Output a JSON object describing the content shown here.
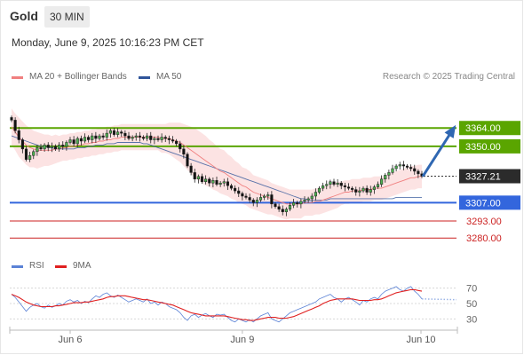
{
  "header": {
    "title": "Gold",
    "timeframe": "30 MIN"
  },
  "timestamp": "Monday, June 9, 2025 10:16:23 PM CET",
  "legend": {
    "ma20": {
      "label": "MA 20 + Bollinger Bands",
      "color": "#f08080"
    },
    "ma50": {
      "label": "MA 50",
      "color": "#30559a"
    },
    "rsi": {
      "label": "RSI",
      "color": "#5b82d6"
    },
    "ma9": {
      "label": "9MA",
      "color": "#e02020"
    }
  },
  "credit": "Research © 2025 Trading Central",
  "chart_data": [
    {
      "type": "candlestick",
      "ylim": [
        3272,
        3375
      ],
      "last_price": {
        "value": 3327.21,
        "label": "3327.21"
      },
      "levels": [
        {
          "label": "3364.00",
          "value": 3364.0,
          "kind": "resistance",
          "color": "#5aa500"
        },
        {
          "label": "3350.00",
          "value": 3350.0,
          "kind": "resistance",
          "color": "#5aa500"
        },
        {
          "label": "3307.00",
          "value": 3307.0,
          "kind": "pivot",
          "color": "#3366dd"
        },
        {
          "label": "3293.00",
          "value": 3293.0,
          "kind": "support",
          "color": "#cc2222"
        },
        {
          "label": "3280.00",
          "value": 3280.0,
          "kind": "support",
          "color": "#cc2222"
        }
      ],
      "arrow": {
        "from": 3327,
        "to": 3364
      },
      "x_ticks": [
        "Jun 6",
        "Jun 9",
        "Jun 10"
      ],
      "close": [
        3370,
        3362,
        3355,
        3348,
        3340,
        3343,
        3346,
        3349,
        3348,
        3351,
        3349,
        3350,
        3348,
        3351,
        3350,
        3353,
        3355,
        3352,
        3356,
        3354,
        3357,
        3355,
        3358,
        3356,
        3358,
        3357,
        3360,
        3362,
        3359,
        3361,
        3360,
        3358,
        3356,
        3357,
        3358,
        3357,
        3356,
        3358,
        3355,
        3356,
        3355,
        3357,
        3356,
        3355,
        3354,
        3352,
        3348,
        3344,
        3335,
        3330,
        3325,
        3327,
        3323,
        3325,
        3322,
        3324,
        3321,
        3322,
        3323,
        3320,
        3318,
        3316,
        3314,
        3312,
        3311,
        3309,
        3307,
        3309,
        3311,
        3312,
        3313,
        3306,
        3304,
        3302,
        3300,
        3302,
        3305,
        3307,
        3306,
        3308,
        3309,
        3310,
        3312,
        3315,
        3318,
        3320,
        3321,
        3323,
        3321,
        3322,
        3320,
        3319,
        3318,
        3317,
        3315,
        3316,
        3318,
        3315,
        3317,
        3319,
        3321,
        3325,
        3328,
        3330,
        3333,
        3335,
        3336,
        3335,
        3334,
        3333,
        3331,
        3329,
        3327.21
      ],
      "ma20": [
        3365,
        3361,
        3357,
        3354,
        3351,
        3349,
        3348,
        3347,
        3347,
        3347,
        3347,
        3347,
        3348,
        3348,
        3349,
        3349,
        3350,
        3350,
        3351,
        3351,
        3352,
        3352,
        3353,
        3353,
        3354,
        3354,
        3355,
        3355,
        3356,
        3356,
        3357,
        3357,
        3357,
        3357,
        3357,
        3357,
        3357,
        3357,
        3357,
        3357,
        3357,
        3356,
        3356,
        3356,
        3355,
        3354,
        3353,
        3351,
        3349,
        3347,
        3345,
        3343,
        3341,
        3339,
        3337,
        3335,
        3333,
        3331,
        3330,
        3328,
        3326,
        3324,
        3322,
        3320,
        3319,
        3317,
        3315,
        3314,
        3313,
        3312,
        3311,
        3310,
        3309,
        3308,
        3307,
        3306,
        3306,
        3306,
        3306,
        3306,
        3307,
        3307,
        3307,
        3308,
        3308,
        3309,
        3310,
        3311,
        3312,
        3313,
        3314,
        3315,
        3315,
        3316,
        3316,
        3316,
        3317,
        3317,
        3317,
        3318,
        3318,
        3318,
        3319,
        3320,
        3321,
        3322,
        3323,
        3324,
        3325,
        3326,
        3326,
        3327,
        3327
      ],
      "ma50": [
        3358,
        3357,
        3356,
        3355,
        3354,
        3353,
        3352,
        3351,
        3350,
        3350,
        3349,
        3349,
        3348,
        3348,
        3348,
        3348,
        3348,
        3348,
        3349,
        3349,
        3349,
        3350,
        3350,
        3351,
        3351,
        3351,
        3352,
        3352,
        3352,
        3353,
        3353,
        3353,
        3353,
        3353,
        3353,
        3353,
        3352,
        3352,
        3351,
        3350,
        3349,
        3348,
        3347,
        3346,
        3345,
        3344,
        3343,
        3342,
        3341,
        3340,
        3339,
        3338,
        3337,
        3336,
        3335,
        3334,
        3333,
        3332,
        3331,
        3330,
        3329,
        3328,
        3327,
        3326,
        3325,
        3324,
        3323,
        3322,
        3321,
        3320,
        3319,
        3318,
        3317,
        3316,
        3315,
        3314,
        3313,
        3312,
        3311,
        3310,
        3310,
        3309,
        3309,
        3309,
        3309,
        3309,
        3309,
        3310,
        3310,
        3310,
        3310,
        3310,
        3310,
        3310,
        3310,
        3310,
        3310,
        3310,
        3310,
        3310,
        3310,
        3310,
        3310,
        3310,
        3310,
        3311,
        3311,
        3311,
        3311,
        3311,
        3311,
        3311,
        3311
      ],
      "bb_width": [
        14,
        14,
        15,
        15,
        15,
        15,
        14,
        14,
        13,
        12,
        12,
        11,
        11,
        10,
        10,
        10,
        10,
        10,
        10,
        10,
        10,
        10,
        10,
        10,
        10,
        10,
        10,
        10,
        10,
        10,
        10,
        10,
        10,
        10,
        10,
        10,
        10,
        10,
        10,
        10,
        10,
        11,
        11,
        12,
        13,
        14,
        15,
        16,
        17,
        18,
        19,
        19,
        19,
        19,
        18,
        18,
        17,
        17,
        17,
        16,
        16,
        15,
        15,
        14,
        14,
        14,
        13,
        13,
        13,
        13,
        13,
        12,
        12,
        12,
        12,
        12,
        11,
        11,
        11,
        11,
        10,
        10,
        10,
        10,
        10,
        10,
        10,
        10,
        10,
        10,
        9,
        9,
        9,
        9,
        9,
        9,
        9,
        9,
        9,
        9,
        9,
        9,
        9,
        9,
        9,
        9,
        9,
        9,
        9,
        9,
        9,
        9,
        9
      ]
    },
    {
      "type": "line",
      "ylim": [
        20,
        80
      ],
      "y_ticks": [
        "70",
        "50",
        "30"
      ],
      "y_tick_values": [
        70,
        50,
        30
      ],
      "rsi": [
        62,
        58,
        52,
        46,
        40,
        45,
        48,
        50,
        46,
        44,
        48,
        45,
        47,
        50,
        48,
        53,
        55,
        52,
        54,
        50,
        53,
        51,
        56,
        60,
        58,
        62,
        64,
        60,
        58,
        61,
        58,
        55,
        52,
        54,
        56,
        54,
        52,
        56,
        50,
        52,
        48,
        52,
        50,
        46,
        44,
        42,
        38,
        32,
        28,
        34,
        36,
        32,
        35,
        37,
        34,
        32,
        36,
        35,
        36,
        32,
        28,
        26,
        30,
        28,
        26,
        29,
        26,
        30,
        34,
        36,
        38,
        30,
        28,
        26,
        30,
        34,
        38,
        40,
        42,
        44,
        46,
        48,
        50,
        52,
        56,
        58,
        60,
        62,
        58,
        56,
        52,
        56,
        58,
        55,
        52,
        48,
        54,
        52,
        56,
        58,
        56,
        62,
        66,
        68,
        70,
        72,
        68,
        66,
        70,
        72,
        66,
        62,
        56
      ],
      "ma9": [
        62,
        60,
        58,
        55,
        52,
        50,
        48,
        47,
        46,
        46,
        46,
        46,
        47,
        47,
        48,
        49,
        50,
        51,
        51,
        51,
        52,
        52,
        53,
        54,
        55,
        56,
        58,
        59,
        59,
        60,
        60,
        60,
        59,
        58,
        57,
        56,
        55,
        55,
        54,
        53,
        52,
        51,
        50,
        49,
        48,
        46,
        44,
        42,
        40,
        38,
        37,
        36,
        35,
        34,
        34,
        34,
        34,
        34,
        34,
        33,
        32,
        31,
        30,
        29,
        29,
        28,
        28,
        29,
        30,
        31,
        32,
        32,
        32,
        31,
        31,
        31,
        32,
        33,
        35,
        37,
        39,
        41,
        43,
        45,
        47,
        50,
        52,
        54,
        55,
        56,
        56,
        56,
        56,
        56,
        55,
        54,
        54,
        54,
        54,
        55,
        55,
        56,
        58,
        60,
        62,
        64,
        65,
        66,
        67,
        68,
        68,
        67,
        66
      ],
      "projection": [
        56,
        55
      ]
    }
  ]
}
